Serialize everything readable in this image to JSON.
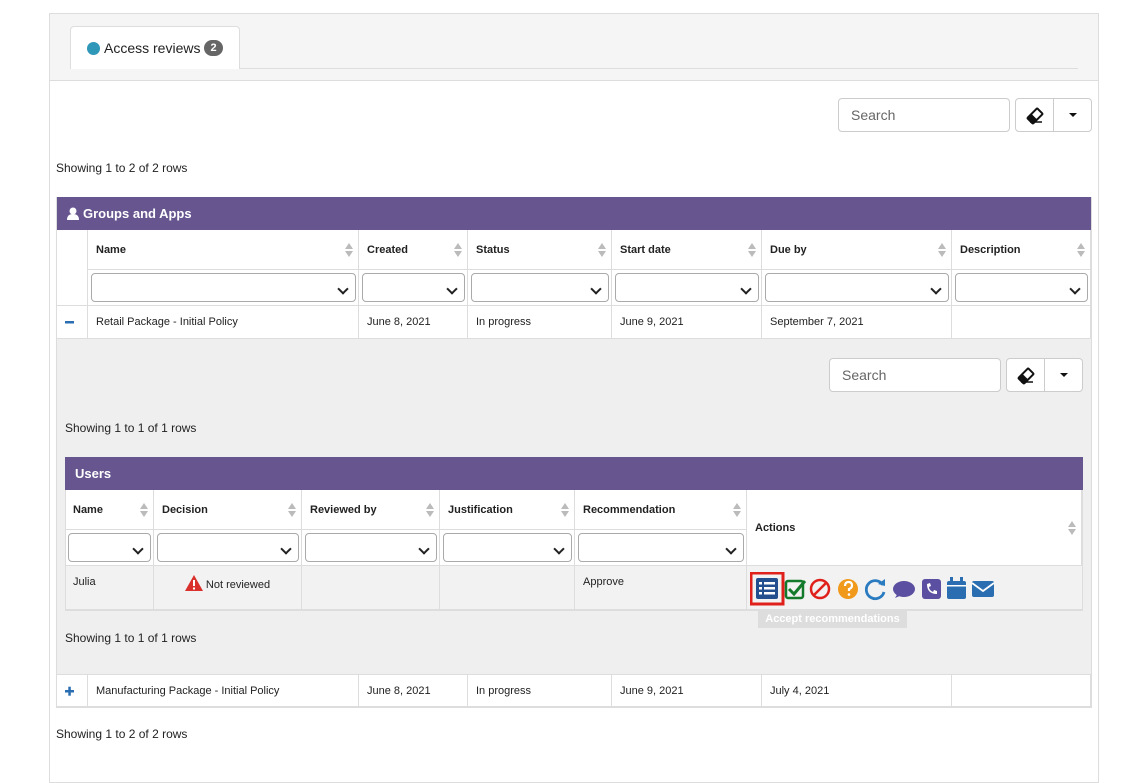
{
  "tab": {
    "label": "Access reviews",
    "badge": 2
  },
  "toolbar": {
    "search": "Search"
  },
  "summary_top": "Showing 1 to 2 of 2 rows",
  "groups_table": {
    "title": "Groups and Apps",
    "columns": [
      "Name",
      "Created",
      "Status",
      "Start date",
      "Due by",
      "Description"
    ],
    "rows": [
      {
        "name": "Retail Package - Initial Policy",
        "created": "June 8, 2021",
        "status": "In progress",
        "start_date": "June 9, 2021",
        "due_by": "September 7, 2021"
      },
      {
        "name": "Manufacturing Package - Initial Policy",
        "created": "June 8, 2021",
        "status": "In progress",
        "start_date": "June 9, 2021",
        "due_by": "July 4, 2021"
      }
    ]
  },
  "detail": {
    "search": "Search",
    "summary": "Showing 1 to 1 of 1 rows",
    "users_table": {
      "title": "Users",
      "columns": [
        "Name",
        "Decision",
        "Reviewed by",
        "Justification",
        "Recommendation",
        "Actions"
      ],
      "rows": [
        {
          "name": "Julia",
          "decision": "Not reviewed",
          "recommendation": "Approve"
        }
      ]
    },
    "tooltip": "Accept recommendations",
    "summary_bottom": "Showing 1 to 1 of 1 rows"
  },
  "summary_bottom": "Showing 1 to 2 of 2 rows"
}
